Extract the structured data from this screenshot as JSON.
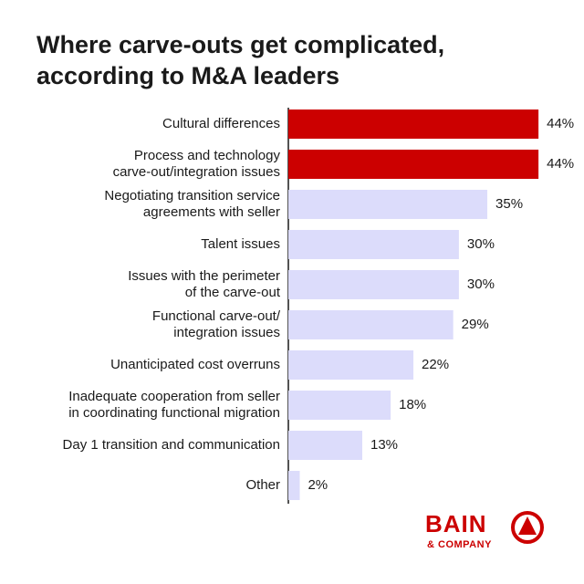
{
  "chart_data": {
    "type": "barh",
    "title": "Where carve-outs get complicated,\naccording to M&A leaders",
    "categories": [
      "Cultural differences",
      "Process and technology\ncarve-out/integration issues",
      "Negotiating transition service\nagreements with seller",
      "Talent issues",
      "Issues with the perimeter\nof the carve-out",
      "Functional carve-out/\nintegration issues",
      "Unanticipated cost overruns",
      "Inadequate cooperation from seller\nin coordinating functional migration",
      "Day 1 transition and communication",
      "Other"
    ],
    "values": [
      44,
      44,
      35,
      30,
      30,
      29,
      22,
      18,
      13,
      2
    ],
    "value_labels": [
      "44%",
      "44%",
      "35%",
      "30%",
      "30%",
      "29%",
      "22%",
      "18%",
      "13%",
      "2%"
    ],
    "colors": [
      "#cc0000",
      "#cc0000",
      "#dcdcfb",
      "#dcdcfb",
      "#dcdcfb",
      "#dcdcfb",
      "#dcdcfb",
      "#dcdcfb",
      "#dcdcfb",
      "#dcdcfb"
    ]
  },
  "brand": {
    "name": "BAIN",
    "subtitle": "& COMPANY"
  }
}
